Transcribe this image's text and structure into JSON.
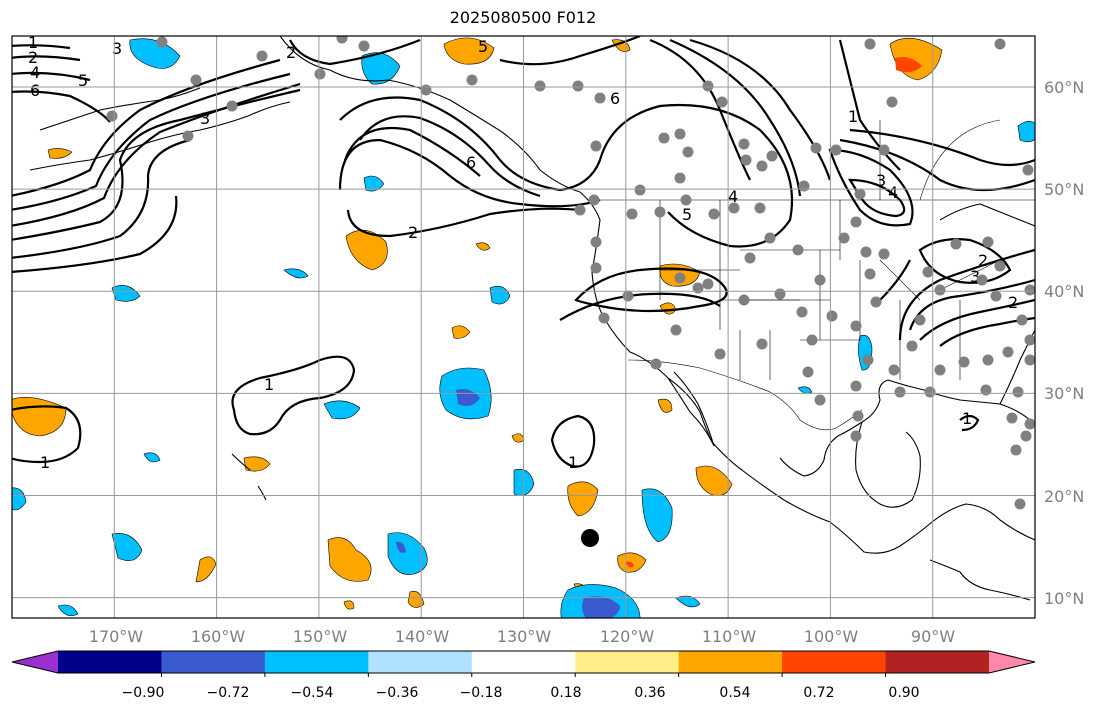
{
  "title": "2025080500 F012",
  "chart_data": {
    "type": "map",
    "title": "2025080500 F012",
    "lon_ticks": [
      "170°W",
      "160°W",
      "150°W",
      "140°W",
      "130°W",
      "120°W",
      "110°W",
      "100°W",
      "90°W"
    ],
    "lat_ticks": [
      "10°N",
      "20°N",
      "30°N",
      "40°N",
      "50°N",
      "60°N"
    ],
    "lon_range": [
      -180,
      -80
    ],
    "lat_range": [
      8,
      65
    ],
    "grid": true,
    "contour_labels": [
      "1",
      "2",
      "3",
      "4",
      "5",
      "6"
    ],
    "colorbar": {
      "orientation": "horizontal",
      "extend": "both",
      "ticks": [
        "−0.90",
        "−0.72",
        "−0.54",
        "−0.36",
        "−0.18",
        "0.18",
        "0.36",
        "0.54",
        "0.72",
        "0.90"
      ],
      "colors": [
        "#9b30d0",
        "#00008b",
        "#3a5bcf",
        "#00bfff",
        "#b0e2ff",
        "#ffffff",
        "#ffee88",
        "#ffa500",
        "#ff4500",
        "#b22222",
        "#ff88aa"
      ]
    },
    "marker_color_dots": "#808080",
    "marker_color_center": "#000000"
  }
}
